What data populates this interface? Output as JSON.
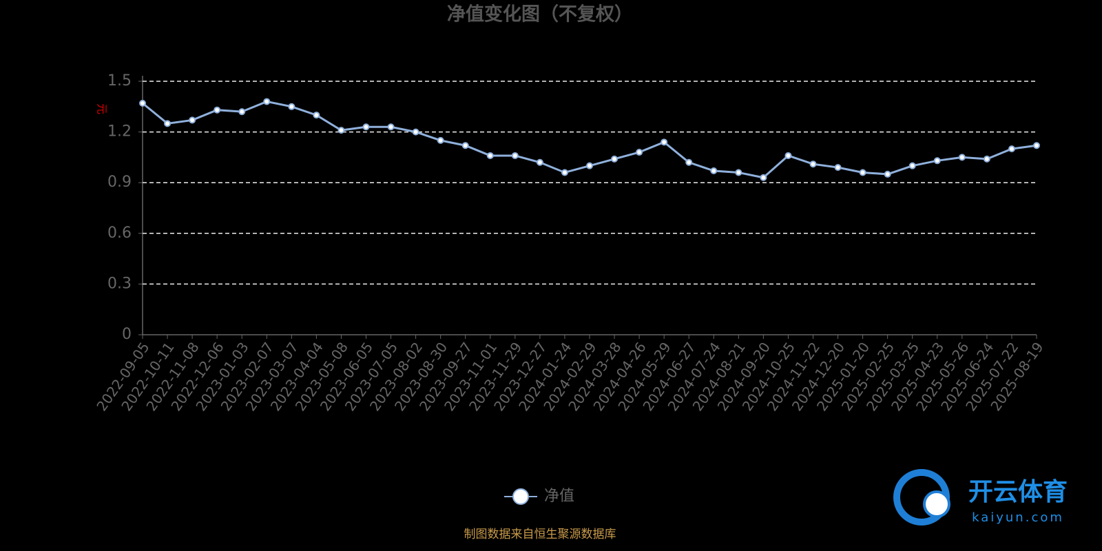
{
  "chart_data": {
    "type": "line",
    "title": "净值变化图（不复权）",
    "y_label": "元",
    "categories": [
      "2022-09-05",
      "2022-10-11",
      "2022-11-08",
      "2022-12-06",
      "2023-01-03",
      "2023-02-07",
      "2023-03-07",
      "2023-04-04",
      "2023-05-08",
      "2023-06-05",
      "2023-07-05",
      "2023-08-02",
      "2023-08-30",
      "2023-09-27",
      "2023-11-01",
      "2023-11-29",
      "2023-12-27",
      "2024-01-24",
      "2024-02-29",
      "2024-03-28",
      "2024-04-26",
      "2024-05-29",
      "2024-06-27",
      "2024-07-24",
      "2024-08-21",
      "2024-09-20",
      "2024-10-25",
      "2024-11-22",
      "2024-12-20",
      "2025-01-20",
      "2025-02-25",
      "2025-03-25",
      "2025-04-23",
      "2025-05-26",
      "2025-06-24",
      "2025-07-22",
      "2025-08-19"
    ],
    "series": [
      {
        "name": "净值",
        "color": "#8fb0dc",
        "values": [
          1.37,
          1.25,
          1.27,
          1.33,
          1.32,
          1.38,
          1.35,
          1.3,
          1.21,
          1.23,
          1.23,
          1.2,
          1.15,
          1.12,
          1.06,
          1.06,
          1.02,
          0.96,
          1.0,
          1.04,
          1.08,
          1.14,
          1.02,
          0.97,
          0.96,
          0.93,
          1.06,
          1.01,
          0.99,
          0.96,
          0.95,
          1.0,
          1.03,
          1.05,
          1.04,
          1.1,
          1.12
        ]
      }
    ],
    "ylim": [
      0,
      1.5
    ],
    "yticks": [
      0,
      0.3,
      0.6,
      0.9,
      1.2,
      1.5
    ],
    "grid": true,
    "legend": "bottom",
    "source": "制图数据来自恒生聚源数据库",
    "watermark": {
      "name": "开云体育",
      "url": "kaiyun.com"
    }
  }
}
